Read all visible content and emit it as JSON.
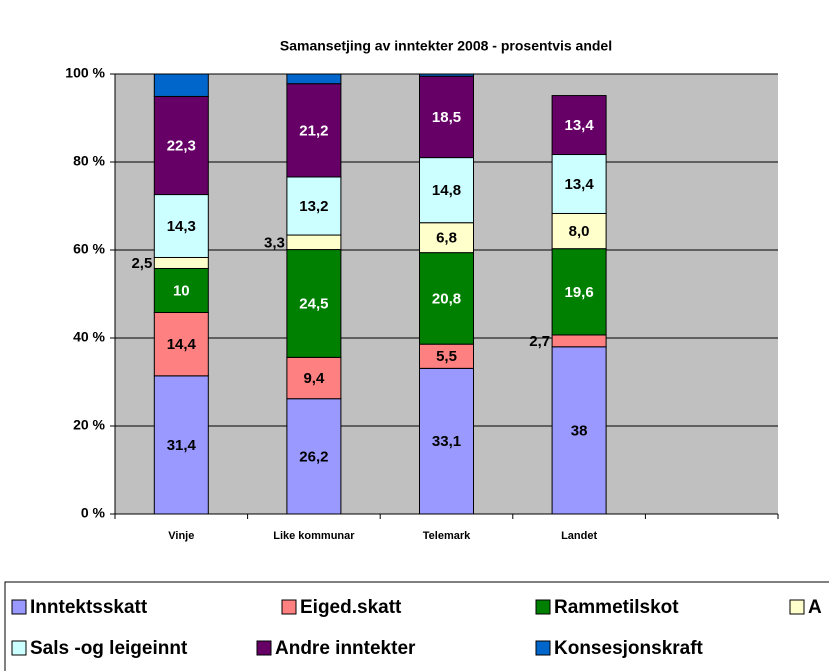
{
  "chart_data": {
    "type": "stacked_bar",
    "title": "Samansetjing av inntekter 2008 -  prosentvis andel",
    "categories": [
      "Vinje",
      "Like kommunar",
      "Telemark",
      "Landet",
      null
    ],
    "series": [
      {
        "name": "Inntektsskatt",
        "color": "#9999ff",
        "values": [
          31.4,
          26.2,
          33.1,
          38,
          null
        ],
        "value_labels": [
          "31,4",
          "26,2",
          "33,1",
          "38",
          null
        ]
      },
      {
        "name": "Eiged.skatt",
        "color": "#ff8080",
        "values": [
          14.4,
          9.4,
          5.5,
          2.7,
          null
        ],
        "value_labels": [
          "14,4",
          "9,4",
          "5,5",
          "2,7",
          null
        ]
      },
      {
        "name": "Rammetilskot",
        "color": "#008000",
        "values": [
          10,
          24.5,
          20.8,
          19.6,
          null
        ],
        "value_labels": [
          "10",
          "24,5",
          "20,8",
          "19,6",
          null
        ]
      },
      {
        "name": "A",
        "color": "#ffffcc",
        "values": [
          2.5,
          3.3,
          6.8,
          8.0,
          null
        ],
        "value_labels": [
          "2,5",
          "3,3",
          "6,8",
          "8,0",
          null
        ]
      },
      {
        "name": "Sals -og leigeinnt",
        "color": "#ccffff",
        "values": [
          14.3,
          13.2,
          14.8,
          13.4,
          null
        ],
        "value_labels": [
          "14,3",
          "13,2",
          "14,8",
          "13,4",
          null
        ]
      },
      {
        "name": "Andre inntekter",
        "color": "#660066",
        "values": [
          22.3,
          21.2,
          18.5,
          13.4,
          null
        ],
        "value_labels": [
          "22,3",
          "21,2",
          "18,5",
          "13,4",
          null
        ]
      },
      {
        "name": "Konsesjonskraft",
        "color": "#0066cc",
        "values": [
          5.1,
          2.2,
          0.5,
          0,
          null
        ]
      }
    ],
    "ylim": [
      0,
      100
    ],
    "yticks": [
      {
        "value": 0,
        "label": "0 %"
      },
      {
        "value": 20,
        "label": "20 %"
      },
      {
        "value": 40,
        "label": "40 %"
      },
      {
        "value": 60,
        "label": "60 %"
      },
      {
        "value": 80,
        "label": "80 %"
      },
      {
        "value": 100,
        "label": "100 %"
      }
    ],
    "grid": true,
    "legend": "bottom"
  }
}
